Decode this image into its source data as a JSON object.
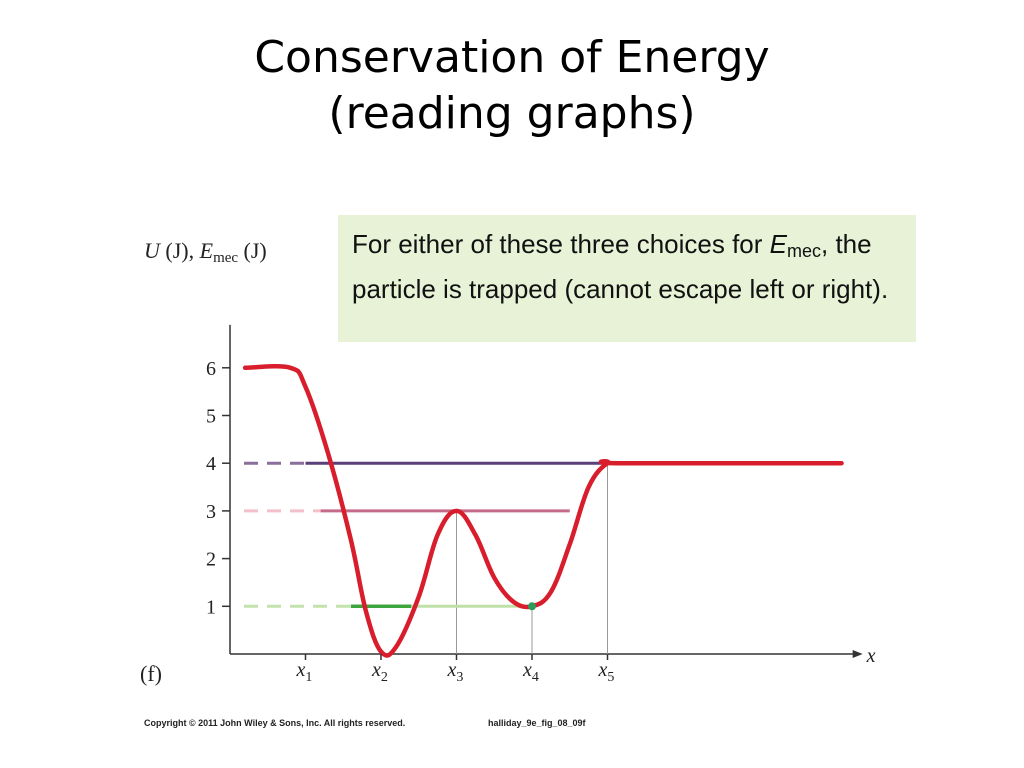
{
  "title": {
    "line1": "Conservation of Energy",
    "line2": "(reading graphs)"
  },
  "callout": {
    "text_before": "For either of these three choices for ",
    "emphasis": "E",
    "subscript": "mec",
    "text_after": ", the particle is trapped (cannot escape left or right)."
  },
  "footer": {
    "copyright": "Copyright © 2011 John Wiley & Sons, Inc. All rights reserved.",
    "figure_id": "halliday_9e_fig_08_09f"
  },
  "chart_data": {
    "type": "line",
    "panel_label": "(f)",
    "ylabel": {
      "u": "U",
      "u_unit": "(J),",
      "e": "E",
      "e_sub": "mec",
      "e_unit": "(J)"
    },
    "xlabel": "x",
    "yticks": [
      1,
      2,
      3,
      4,
      5,
      6
    ],
    "ylim": [
      0,
      6.9
    ],
    "xticks": [
      {
        "base": "x",
        "sub": "1",
        "x": 1.0
      },
      {
        "base": "x",
        "sub": "2",
        "x": 2.0
      },
      {
        "base": "x",
        "sub": "3",
        "x": 3.0
      },
      {
        "base": "x",
        "sub": "4",
        "x": 4.0
      },
      {
        "base": "x",
        "sub": "5",
        "x": 5.0
      }
    ],
    "xlim": [
      0,
      8.3
    ],
    "potential_curve": {
      "color": "#d81e2c",
      "x": [
        0.2,
        0.8,
        1.0,
        1.3,
        1.6,
        1.8,
        2.0,
        2.2,
        2.5,
        2.75,
        3.0,
        3.25,
        3.5,
        3.75,
        4.0,
        4.25,
        4.5,
        4.75,
        5.0,
        5.2,
        8.1
      ],
      "y": [
        6.0,
        6.0,
        5.6,
        4.2,
        2.4,
        0.9,
        0.05,
        0.15,
        1.2,
        2.5,
        3.0,
        2.5,
        1.6,
        1.1,
        1.0,
        1.3,
        2.3,
        3.5,
        4.0,
        4.0,
        4.0
      ]
    },
    "energy_levels": [
      {
        "level": 4,
        "dash_color": "#8a6f9c",
        "solid_color": "#5a3f7a",
        "x_start": 1.0,
        "x_end": 5.0
      },
      {
        "level": 3,
        "dash_color": "#f4c0cc",
        "solid_color": "#c66a8a",
        "x_start": 1.2,
        "x_end": 4.5
      },
      {
        "level": 1,
        "dash_color": "#c3e2ad",
        "solid_color": "#bfe0a8",
        "x_start": 1.6,
        "x_end": 4.0,
        "highlight": {
          "x_start": 1.6,
          "x_end": 2.4,
          "color": "#3ca53c"
        }
      }
    ],
    "marker": {
      "x": 4.0,
      "y": 1.0,
      "color": "#2e9a5a"
    },
    "vertical_guides": [
      3.0,
      4.0,
      5.0
    ]
  }
}
